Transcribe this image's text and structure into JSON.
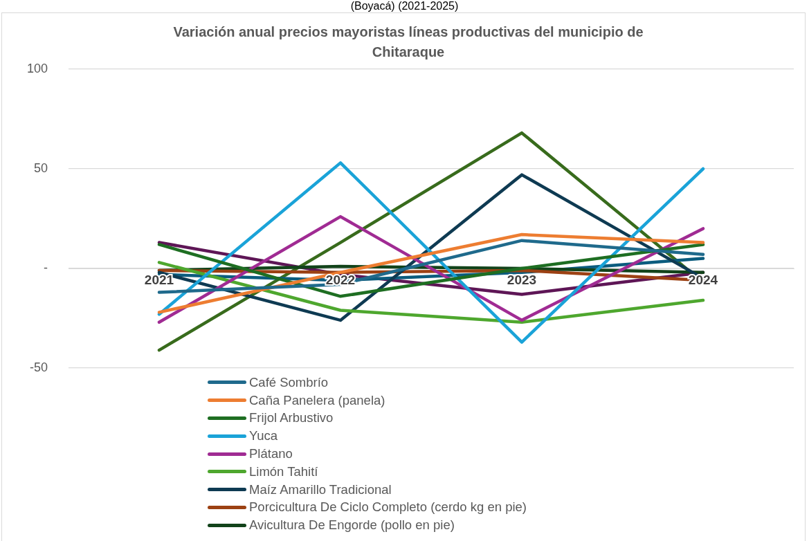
{
  "chart_data": {
    "type": "line",
    "subtitle": "(Boyacá) (2021-2025)",
    "title": "Variación anual  precios mayoristas líneas productivas del municipio de Chitaraque",
    "categories": [
      "2021",
      "2022",
      "2023",
      "2024"
    ],
    "ylim": [
      -50,
      100
    ],
    "yticks": [
      {
        "value": -50,
        "label": "-50"
      },
      {
        "value": 0,
        "label": "-"
      },
      {
        "value": 50,
        "label": "50"
      },
      {
        "value": 100,
        "label": "100"
      }
    ],
    "grid": "y",
    "legend": "bottom",
    "series": [
      {
        "name": "Café Sombrío",
        "color": "#1f6a8c",
        "values": [
          -12,
          -8,
          14,
          7
        ]
      },
      {
        "name": "Caña Panelera (panela)",
        "color": "#ed7d31",
        "values": [
          -22,
          -2,
          17,
          13
        ]
      },
      {
        "name": "Frijol Arbustivo",
        "color": "#1e6e22",
        "values": [
          12,
          -14,
          0,
          12
        ]
      },
      {
        "name": "Yuca",
        "color": "#1aa3d8",
        "values": [
          -23,
          53,
          -37,
          50
        ]
      },
      {
        "name": "Plátano",
        "color": "#a02b93",
        "values": [
          -27,
          26,
          -26,
          20
        ]
      },
      {
        "name": "Limón Tahití",
        "color": "#4ea72e",
        "values": [
          3,
          -21,
          -27,
          -16
        ]
      },
      {
        "name": "Maíz Amarillo Tradicional",
        "color": "#0e3a52",
        "values": [
          -2,
          -26,
          47,
          -5
        ]
      },
      {
        "name": "Porcicultura De Ciclo Completo (cerdo kg en pie)",
        "color": "#9c4113",
        "values": [
          -1,
          -2,
          -1,
          -6
        ]
      },
      {
        "name": "Avicultura De Engorde (pollo en pie)",
        "color": "#12431a",
        "values": [
          -1,
          1,
          0,
          -2
        ]
      },
      {
        "color": "#0b5c7e",
        "values": [
          -3,
          -6,
          -2,
          5
        ]
      },
      {
        "color": "#5e1656",
        "values": [
          13,
          -3,
          -13,
          -2
        ]
      },
      {
        "color": "#386b1c",
        "values": [
          -41,
          13,
          68,
          -7
        ]
      }
    ]
  }
}
